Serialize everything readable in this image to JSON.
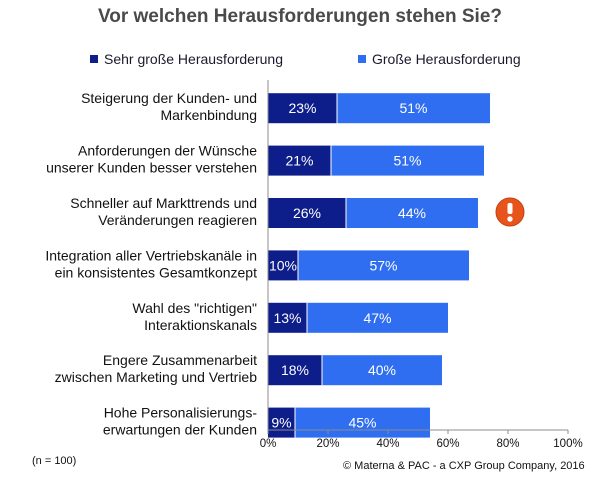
{
  "chart_data": {
    "type": "bar",
    "orientation": "horizontal",
    "stacked": true,
    "title": "Vor welchen Herausforderungen stehen Sie?",
    "categories": [
      [
        "Steigerung der Kunden- und",
        "Markenbindung"
      ],
      [
        "Anforderungen der Wünsche",
        "unserer Kunden besser verstehen"
      ],
      [
        "Schneller auf Markttrends und",
        "Veränderungen reagieren"
      ],
      [
        "Integration aller Vertriebskanäle in",
        "ein konsistentes Gesamtkonzept"
      ],
      [
        "Wahl des \"richtigen\"",
        "Interaktionskanals"
      ],
      [
        "Engere Zusammenarbeit",
        "zwischen Marketing und Vertrieb"
      ],
      [
        "Hohe Personalisierungs-",
        "erwartungen der Kunden"
      ]
    ],
    "series": [
      {
        "name": "Sehr große Herausforderung",
        "color": "#0d1d8a",
        "values": [
          23,
          21,
          26,
          10,
          13,
          18,
          9
        ]
      },
      {
        "name": "Große Herausforderung",
        "color": "#2f6ef0",
        "values": [
          51,
          51,
          44,
          57,
          47,
          40,
          45
        ]
      }
    ],
    "xlim": [
      0,
      100
    ],
    "xticks": [
      0,
      20,
      40,
      60,
      80,
      100
    ],
    "tick_suffix": "%",
    "value_suffix": "%",
    "highlight": {
      "category_index": 2,
      "icon": "exclamation-icon",
      "color": "#e8551c"
    }
  },
  "footnote": "(n = 100)",
  "copyright": "© Materna & PAC - a CXP Group Company, 2016"
}
